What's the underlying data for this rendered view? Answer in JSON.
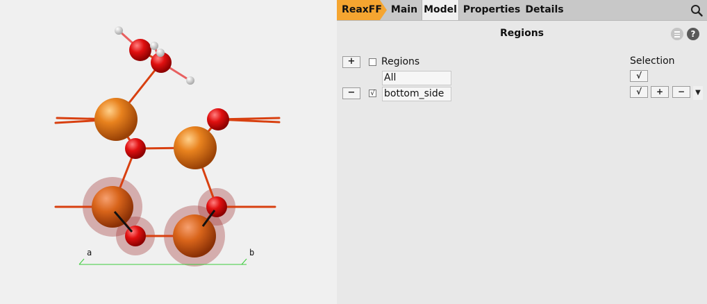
{
  "tabs": {
    "reaxff": "ReaxFF",
    "main": "Main",
    "model": "Model",
    "properties": "Properties",
    "details": "Details"
  },
  "panel": {
    "title": "Regions",
    "help_glyph": "?"
  },
  "regions": {
    "add_glyph": "+",
    "remove_glyph": "−",
    "header_label": "Regions",
    "header_checked": false,
    "items": [
      {
        "name": "All"
      },
      {
        "name": "bottom_side",
        "checked": true
      }
    ]
  },
  "selection": {
    "label": "Selection",
    "check_glyph": "√",
    "add_glyph": "+",
    "remove_glyph": "−",
    "dropdown_glyph": "▼"
  },
  "viewport": {
    "axis_a": "a",
    "axis_b": "b"
  },
  "colors": {
    "accent": "#f5a530",
    "tabbar": "#c8c8c8",
    "panel_bg": "#e8e8e8",
    "viewport_bg": "#f0f0f0",
    "atom_orange": "#e8821e",
    "atom_red": "#e01010",
    "bond": "#d84010",
    "axis_green": "#3ccc3c"
  }
}
